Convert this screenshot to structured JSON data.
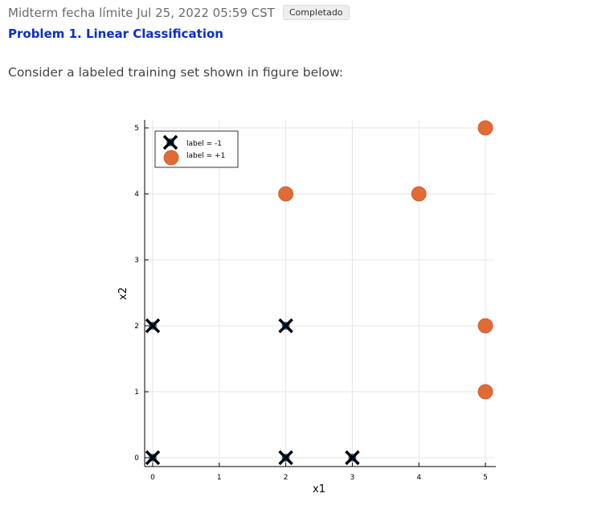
{
  "header": {
    "deadline": "Midterm fecha límite Jul 25, 2022 05:59 CST",
    "status": "Completado"
  },
  "problem": {
    "title": "Problem 1. Linear Classification",
    "prompt": "Consider a labeled training set shown in figure below:"
  },
  "colors": {
    "link": "#0a2fc8",
    "negative_marker": "#000000",
    "negative_dot": "#1f77b4",
    "positive_marker": "#e26a35"
  },
  "chart_data": {
    "type": "scatter",
    "xlabel": "x1",
    "ylabel": "x2",
    "xlim": [
      0,
      5
    ],
    "ylim": [
      0,
      5
    ],
    "xticks": [
      "0",
      "1",
      "2",
      "3",
      "4",
      "5"
    ],
    "yticks": [
      "0",
      "1",
      "2",
      "3",
      "4",
      "5"
    ],
    "grid": true,
    "legend_position": "top-left",
    "series": [
      {
        "name": "label = -1",
        "marker": "x",
        "points": [
          [
            0,
            0
          ],
          [
            2,
            0
          ],
          [
            3,
            0
          ],
          [
            0,
            2
          ],
          [
            2,
            2
          ]
        ]
      },
      {
        "name": "label = +1",
        "marker": "circle",
        "points": [
          [
            2,
            4
          ],
          [
            4,
            4
          ],
          [
            5,
            5
          ],
          [
            5,
            2
          ],
          [
            5,
            1
          ]
        ]
      }
    ]
  }
}
